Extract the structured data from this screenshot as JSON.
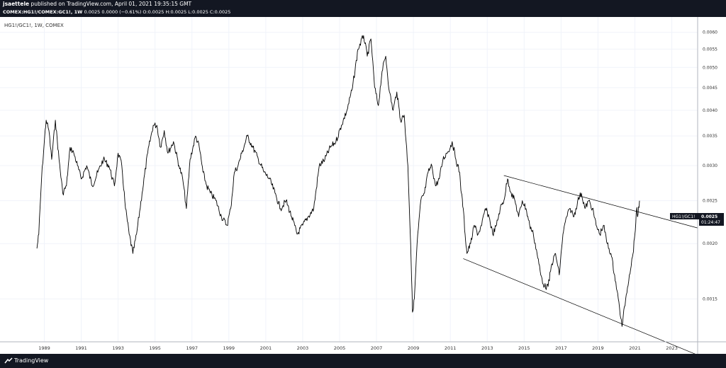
{
  "header": {
    "publisher": "jsaettele",
    "published_text": "published on TradingView.com, April 01, 2021 19:35:15 GMT",
    "symbol": "COMEX:HG1!/COMEX:GC1!, 1W",
    "ohlc": "0.0025 0.0000 (−0.61%) O:0.0025 H:0.0025 L:0.0025 C:0.0025"
  },
  "footer": {
    "brand": "TradingView"
  },
  "chart_title": "HG1!/GC1!, 1W, COMEX",
  "price_tag": {
    "label": "HG1!/GC1!",
    "value": "0.0025",
    "countdown": "01:24:47"
  },
  "colors": {
    "series": "#000000",
    "trend": "#000000",
    "tag": "#131722",
    "bars": "#131722"
  },
  "chart_data": {
    "type": "line",
    "title": "HG1!/GC1!, 1W, COMEX",
    "scale": "log",
    "xlim": [
      1986.6,
      2024.4
    ],
    "ylim": [
      0.0012,
      0.0065
    ],
    "y_ticks": [
      "0.0060",
      "0.0055",
      "0.0050",
      "0.0045",
      "0.0040",
      "0.0035",
      "0.0030",
      "0.0025",
      "0.0020",
      "0.0015"
    ],
    "x_ticks": [
      "1989",
      "1991",
      "1993",
      "1995",
      "1997",
      "1999",
      "2001",
      "2003",
      "2005",
      "2007",
      "2009",
      "2011",
      "2013",
      "2015",
      "2017",
      "2019",
      "2021",
      "2023"
    ],
    "series": [
      {
        "x": [
          1988.6,
          1988.7,
          1988.85,
          1989.0,
          1989.1,
          1989.25,
          1989.4,
          1989.6,
          1989.8,
          1990.0,
          1990.2,
          1990.4,
          1990.6,
          1990.8,
          1991.0,
          1991.3,
          1991.6,
          1991.9,
          1992.2,
          1992.5,
          1992.8,
          1993.0,
          1993.2,
          1993.4,
          1993.6,
          1993.8,
          1994.0,
          1994.3,
          1994.6,
          1994.9,
          1995.1,
          1995.3,
          1995.5,
          1995.7,
          1996.0,
          1996.3,
          1996.5,
          1996.7,
          1996.9,
          1997.2,
          1997.4,
          1997.6,
          1997.8,
          1998.0,
          1998.3,
          1998.6,
          1998.9,
          1999.1,
          1999.3,
          1999.5,
          1999.7,
          2000.0,
          2000.3,
          2000.6,
          2000.9,
          2001.2,
          2001.5,
          2001.8,
          2002.1,
          2002.4,
          2002.7,
          2003.0,
          2003.3,
          2003.6,
          2003.9,
          2004.2,
          2004.5,
          2004.8,
          2005.1,
          2005.4,
          2005.7,
          2006.0,
          2006.3,
          2006.5,
          2006.7,
          2006.9,
          2007.1,
          2007.3,
          2007.5,
          2007.7,
          2007.9,
          2008.1,
          2008.3,
          2008.5,
          2008.7,
          2008.85,
          2008.95,
          2009.05,
          2009.2,
          2009.4,
          2009.6,
          2009.8,
          2010.0,
          2010.2,
          2010.4,
          2010.6,
          2010.8,
          2011.0,
          2011.1,
          2011.3,
          2011.5,
          2011.6,
          2011.7,
          2011.8,
          2011.9,
          2012.1,
          2012.3,
          2012.5,
          2012.7,
          2012.9,
          2013.1,
          2013.3,
          2013.5,
          2013.7,
          2013.9,
          2014.1,
          2014.3,
          2014.5,
          2014.7,
          2014.9,
          2015.1,
          2015.3,
          2015.5,
          2015.7,
          2015.9,
          2016.1,
          2016.3,
          2016.5,
          2016.7,
          2016.9,
          2017.1,
          2017.3,
          2017.5,
          2017.7,
          2017.9,
          2018.1,
          2018.3,
          2018.5,
          2018.7,
          2018.9,
          2019.1,
          2019.3,
          2019.5,
          2019.7,
          2019.9,
          2020.1,
          2020.3,
          2020.5,
          2020.7,
          2020.9,
          2021.0,
          2021.1,
          2021.15,
          2021.25
        ],
        "y": [
          0.00195,
          0.0021,
          0.0028,
          0.0034,
          0.0038,
          0.0036,
          0.0031,
          0.0038,
          0.0031,
          0.0026,
          0.0027,
          0.0033,
          0.0032,
          0.003,
          0.0028,
          0.003,
          0.0027,
          0.0029,
          0.0031,
          0.003,
          0.0027,
          0.0032,
          0.003,
          0.0024,
          0.0021,
          0.0019,
          0.0021,
          0.0026,
          0.0032,
          0.0037,
          0.0037,
          0.0033,
          0.0036,
          0.0032,
          0.0034,
          0.003,
          0.0028,
          0.0024,
          0.0031,
          0.0035,
          0.0033,
          0.0029,
          0.0027,
          0.0026,
          0.0025,
          0.0023,
          0.0022,
          0.0024,
          0.0029,
          0.003,
          0.0032,
          0.0035,
          0.0033,
          0.0031,
          0.0029,
          0.0028,
          0.0026,
          0.0024,
          0.0025,
          0.0023,
          0.0021,
          0.0022,
          0.0023,
          0.0024,
          0.003,
          0.0031,
          0.0033,
          0.0034,
          0.0037,
          0.004,
          0.0045,
          0.0055,
          0.0059,
          0.0053,
          0.0058,
          0.0045,
          0.0041,
          0.0049,
          0.0053,
          0.0044,
          0.004,
          0.0044,
          0.0038,
          0.0039,
          0.003,
          0.002,
          0.0014,
          0.0015,
          0.002,
          0.0025,
          0.0026,
          0.0029,
          0.003,
          0.0027,
          0.0028,
          0.0031,
          0.0032,
          0.0033,
          0.0034,
          0.0031,
          0.0029,
          0.0026,
          0.0024,
          0.0021,
          0.0019,
          0.002,
          0.0022,
          0.0021,
          0.0022,
          0.0024,
          0.0023,
          0.0021,
          0.0022,
          0.0024,
          0.0025,
          0.0028,
          0.0026,
          0.0025,
          0.0023,
          0.0025,
          0.0024,
          0.0022,
          0.0021,
          0.0019,
          0.0017,
          0.0016,
          0.0016,
          0.0018,
          0.0019,
          0.0017,
          0.0021,
          0.0023,
          0.0024,
          0.0023,
          0.0025,
          0.0026,
          0.0024,
          0.0025,
          0.0024,
          0.0022,
          0.0021,
          0.0022,
          0.002,
          0.0019,
          0.0017,
          0.0015,
          0.0013,
          0.0015,
          0.0017,
          0.0019,
          0.0021,
          0.0024,
          0.0023,
          0.0025
        ]
      }
    ],
    "trendlines": [
      {
        "x": [
          2013.9,
          2024.4
        ],
        "y": [
          0.00285,
          0.00217
        ]
      },
      {
        "x": [
          2011.7,
          2024.4
        ],
        "y": [
          0.00185,
          0.00112
        ]
      }
    ]
  }
}
